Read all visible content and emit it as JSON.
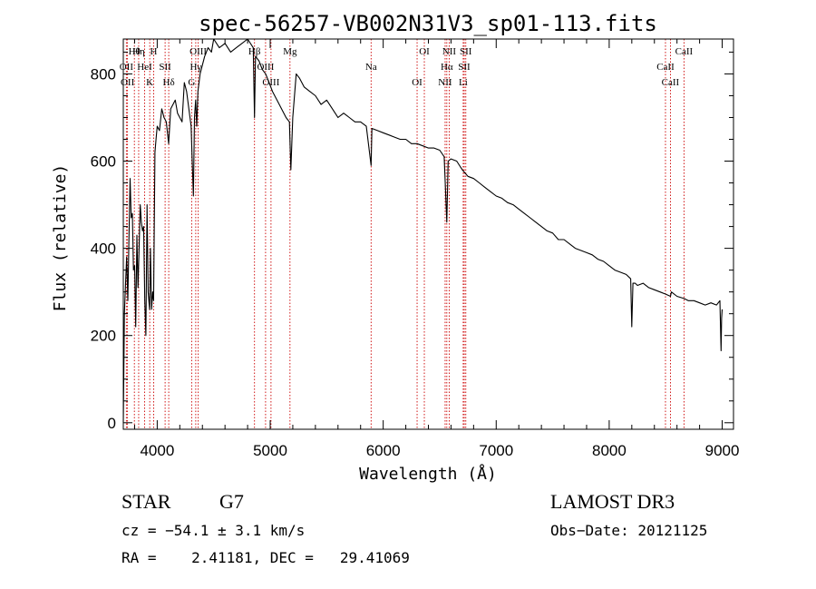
{
  "chart_data": {
    "type": "line",
    "title": "spec-56257-VB002N31V3_sp01-113.fits",
    "xlabel": "Wavelength (Å)",
    "ylabel": "Flux (relative)",
    "xlim": [
      3700,
      9100
    ],
    "ylim": [
      -15,
      880
    ],
    "xticks": [
      4000,
      5000,
      6000,
      7000,
      8000,
      9000
    ],
    "yticks": [
      0,
      200,
      400,
      600,
      800
    ],
    "grid": false,
    "series": [
      {
        "name": "spectrum",
        "x": [
          3700,
          3710,
          3720,
          3730,
          3740,
          3750,
          3760,
          3770,
          3780,
          3790,
          3800,
          3810,
          3820,
          3830,
          3840,
          3850,
          3860,
          3870,
          3880,
          3890,
          3900,
          3910,
          3920,
          3933,
          3940,
          3950,
          3960,
          3968,
          3980,
          3990,
          4000,
          4020,
          4040,
          4060,
          4080,
          4101,
          4120,
          4140,
          4160,
          4180,
          4200,
          4220,
          4240,
          4260,
          4280,
          4300,
          4310,
          4320,
          4330,
          4340,
          4350,
          4360,
          4380,
          4400,
          4420,
          4450,
          4480,
          4500,
          4550,
          4600,
          4650,
          4700,
          4750,
          4800,
          4850,
          4861,
          4870,
          4900,
          4930,
          4960,
          4990,
          5020,
          5060,
          5100,
          5140,
          5170,
          5183,
          5200,
          5230,
          5260,
          5300,
          5350,
          5400,
          5450,
          5500,
          5550,
          5600,
          5650,
          5700,
          5750,
          5800,
          5850,
          5893,
          5900,
          5950,
          6000,
          6050,
          6100,
          6150,
          6200,
          6250,
          6300,
          6350,
          6400,
          6450,
          6500,
          6540,
          6563,
          6575,
          6600,
          6650,
          6700,
          6750,
          6800,
          6850,
          6900,
          6950,
          7000,
          7050,
          7100,
          7150,
          7200,
          7250,
          7300,
          7350,
          7400,
          7450,
          7500,
          7550,
          7600,
          7650,
          7700,
          7750,
          7800,
          7850,
          7900,
          7950,
          8000,
          8050,
          8100,
          8150,
          8190,
          8200,
          8210,
          8230,
          8250,
          8300,
          8350,
          8400,
          8450,
          8500,
          8542,
          8550,
          8600,
          8662,
          8700,
          8750,
          8800,
          8850,
          8900,
          8950,
          8980,
          8990,
          8995,
          9000
        ],
        "y": [
          0,
          250,
          320,
          380,
          280,
          420,
          560,
          470,
          480,
          350,
          360,
          220,
          430,
          310,
          400,
          500,
          460,
          440,
          450,
          280,
          200,
          500,
          300,
          260,
          400,
          260,
          300,
          280,
          620,
          650,
          680,
          670,
          720,
          700,
          690,
          640,
          720,
          730,
          740,
          710,
          700,
          690,
          780,
          760,
          720,
          680,
          600,
          520,
          700,
          740,
          680,
          760,
          800,
          820,
          840,
          860,
          850,
          880,
          860,
          870,
          850,
          860,
          870,
          880,
          860,
          700,
          840,
          830,
          810,
          800,
          780,
          760,
          740,
          720,
          700,
          690,
          580,
          700,
          800,
          790,
          770,
          760,
          750,
          730,
          740,
          720,
          700,
          710,
          700,
          690,
          690,
          680,
          590,
          675,
          670,
          665,
          660,
          655,
          650,
          650,
          640,
          640,
          635,
          630,
          630,
          625,
          610,
          460,
          600,
          605,
          600,
          580,
          565,
          560,
          550,
          540,
          530,
          520,
          515,
          505,
          500,
          490,
          480,
          470,
          460,
          450,
          440,
          435,
          420,
          420,
          410,
          400,
          395,
          390,
          385,
          375,
          370,
          360,
          350,
          345,
          340,
          330,
          220,
          320,
          320,
          315,
          320,
          310,
          305,
          300,
          295,
          290,
          300,
          290,
          285,
          280,
          280,
          275,
          270,
          275,
          270,
          280,
          165,
          240,
          260
        ]
      }
    ],
    "line_marks": [
      {
        "label": "Hθ",
        "x": 3798
      },
      {
        "label": "OII",
        "x": 3727
      },
      {
        "label": "OII",
        "x": 3737
      },
      {
        "label": "Hη",
        "x": 3836
      },
      {
        "label": "HeI",
        "x": 3889
      },
      {
        "label": "K",
        "x": 3934
      },
      {
        "label": "H",
        "x": 3969
      },
      {
        "label": "SII",
        "x": 4070
      },
      {
        "label": "Hδ",
        "x": 4102
      },
      {
        "label": "OIII",
        "x": 4363
      },
      {
        "label": "Hγ",
        "x": 4341
      },
      {
        "label": "G",
        "x": 4305
      },
      {
        "label": "Hβ",
        "x": 4861
      },
      {
        "label": "OIII",
        "x": 4959
      },
      {
        "label": "OIII",
        "x": 5007
      },
      {
        "label": "Mg",
        "x": 5175
      },
      {
        "label": "Na",
        "x": 5893
      },
      {
        "label": "OI",
        "x": 6300
      },
      {
        "label": "OI",
        "x": 6364
      },
      {
        "label": "Hα",
        "x": 6563
      },
      {
        "label": "NII",
        "x": 6548
      },
      {
        "label": "NII",
        "x": 6584
      },
      {
        "label": "SII",
        "x": 6717
      },
      {
        "label": "Li",
        "x": 6708
      },
      {
        "label": "SII",
        "x": 6731
      },
      {
        "label": "CaII",
        "x": 8498
      },
      {
        "label": "CaII",
        "x": 8542
      },
      {
        "label": "CaII",
        "x": 8662
      }
    ]
  },
  "info": {
    "class": "STAR",
    "subclass": "G7",
    "redshift": "cz = −54.1 ± 3.1 km/s",
    "coords": "RA =    2.41181, DEC =   29.41069",
    "survey": "LAMOST DR3",
    "obs_date": "Obs−Date: 20121125"
  },
  "colors": {
    "line": "#000000",
    "marker": "#cc0000"
  }
}
